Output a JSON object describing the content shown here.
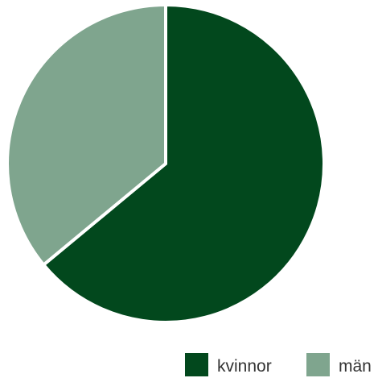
{
  "chart_data": {
    "type": "pie",
    "series": [
      {
        "name": "kvinnor",
        "value": 64,
        "color": "#02481d"
      },
      {
        "name": "män",
        "value": 36,
        "color": "#7fa58e"
      }
    ],
    "start": "12 o'clock",
    "direction": "clockwise",
    "legend_position": "bottom-right"
  }
}
